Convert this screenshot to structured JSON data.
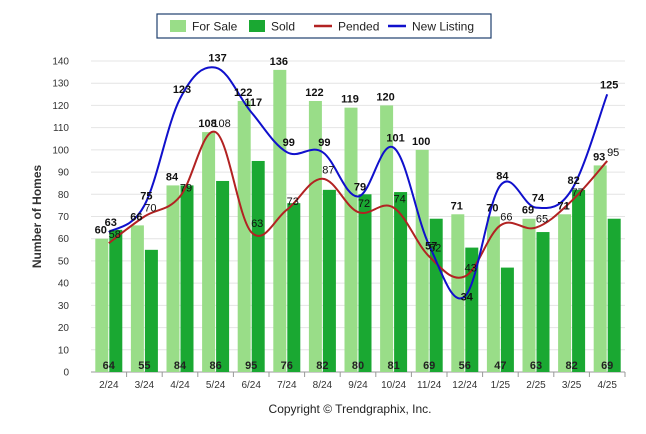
{
  "chart_data": {
    "type": "bar",
    "categories": [
      "2/24",
      "3/24",
      "4/24",
      "5/24",
      "6/24",
      "7/24",
      "8/24",
      "9/24",
      "10/24",
      "11/24",
      "12/24",
      "1/25",
      "2/25",
      "3/25",
      "4/25"
    ],
    "series": [
      {
        "name": "For Sale",
        "kind": "bar",
        "color": "#99dd88",
        "values": [
          60,
          66,
          84,
          108,
          122,
          136,
          122,
          119,
          120,
          100,
          71,
          70,
          69,
          71,
          93
        ]
      },
      {
        "name": "Sold",
        "kind": "bar",
        "color": "#1aa832",
        "values": [
          64,
          55,
          84,
          86,
          95,
          76,
          82,
          80,
          81,
          69,
          56,
          47,
          63,
          82,
          69
        ]
      },
      {
        "name": "Pended",
        "kind": "line",
        "color": "#b22222",
        "values": [
          58,
          70,
          79,
          108,
          63,
          73,
          87,
          72,
          74,
          52,
          43,
          66,
          65,
          77,
          95
        ]
      },
      {
        "name": "New Listing",
        "kind": "line",
        "color": "#1010cc",
        "values": [
          63,
          75,
          123,
          137,
          117,
          99,
          99,
          79,
          101,
          57,
          34,
          84,
          74,
          82,
          125
        ]
      }
    ],
    "ylabel": "Number of Homes",
    "xlabel": "",
    "ylim": [
      0,
      140
    ],
    "yticks": [
      0,
      10,
      20,
      30,
      40,
      50,
      60,
      70,
      80,
      90,
      100,
      110,
      120,
      130,
      140
    ],
    "grid": true,
    "legend": "top-center"
  },
  "credit": "Copyright © Trendgraphix, Inc."
}
